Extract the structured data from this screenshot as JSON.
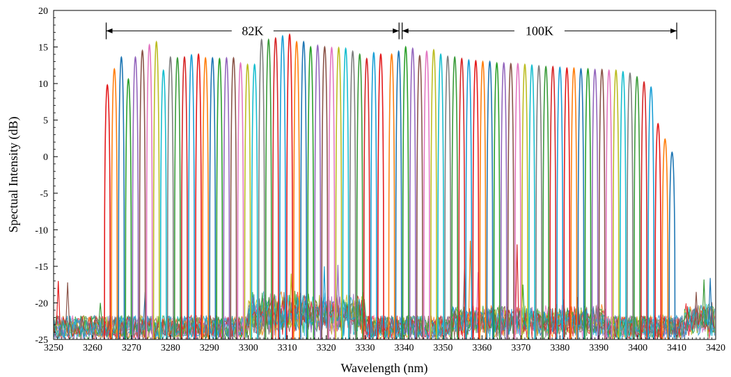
{
  "chart_data": {
    "type": "line",
    "title": "",
    "xlabel": "Wavelength (nm)",
    "ylabel": "Spectual Intensity (dB)",
    "xlim": [
      3250,
      3420
    ],
    "ylim": [
      -25,
      20
    ],
    "xticks": [
      3250,
      3260,
      3270,
      3280,
      3290,
      3300,
      3310,
      3320,
      3330,
      3340,
      3350,
      3360,
      3370,
      3380,
      3390,
      3400,
      3410,
      3420
    ],
    "yticks": [
      -25,
      -20,
      -15,
      -10,
      -5,
      0,
      5,
      10,
      15,
      20
    ],
    "noise_floor": -23,
    "grid": false,
    "legend": "none",
    "annotations": [
      {
        "label": "82K",
        "x_start": 3263.5,
        "x_end": 3338.7,
        "y": 17.2
      },
      {
        "label": "100K",
        "x_start": 3339.5,
        "x_end": 3410,
        "y": 17.2
      }
    ],
    "series_colors": [
      "#e41a1c",
      "#ff7f0e",
      "#1f77b4",
      "#2ca02c",
      "#9467bd",
      "#8c564b",
      "#e377c2",
      "#bcbd22",
      "#17becf",
      "#7f7f7f",
      "#3a9b3a",
      "#d62728",
      "#1a9fd6"
    ],
    "peaks": [
      {
        "x": 3263.8,
        "y": 9.8
      },
      {
        "x": 3265.6,
        "y": 12.0
      },
      {
        "x": 3267.4,
        "y": 13.6
      },
      {
        "x": 3269.2,
        "y": 10.6
      },
      {
        "x": 3271.0,
        "y": 13.6
      },
      {
        "x": 3272.8,
        "y": 14.5
      },
      {
        "x": 3274.6,
        "y": 15.3
      },
      {
        "x": 3276.4,
        "y": 15.7
      },
      {
        "x": 3278.2,
        "y": 11.8
      },
      {
        "x": 3280.0,
        "y": 13.6
      },
      {
        "x": 3281.8,
        "y": 13.5
      },
      {
        "x": 3283.6,
        "y": 13.6
      },
      {
        "x": 3285.4,
        "y": 13.9
      },
      {
        "x": 3287.2,
        "y": 14.0
      },
      {
        "x": 3289.0,
        "y": 13.5
      },
      {
        "x": 3290.8,
        "y": 13.5
      },
      {
        "x": 3292.6,
        "y": 13.4
      },
      {
        "x": 3294.4,
        "y": 13.5
      },
      {
        "x": 3296.2,
        "y": 13.5
      },
      {
        "x": 3298.0,
        "y": 12.8
      },
      {
        "x": 3299.8,
        "y": 12.6
      },
      {
        "x": 3301.6,
        "y": 12.6
      },
      {
        "x": 3303.4,
        "y": 16.0
      },
      {
        "x": 3305.2,
        "y": 16.0
      },
      {
        "x": 3307.0,
        "y": 16.2
      },
      {
        "x": 3308.8,
        "y": 16.5
      },
      {
        "x": 3310.6,
        "y": 16.7
      },
      {
        "x": 3312.4,
        "y": 15.7
      },
      {
        "x": 3314.2,
        "y": 15.7
      },
      {
        "x": 3316.0,
        "y": 15.0
      },
      {
        "x": 3317.8,
        "y": 15.2
      },
      {
        "x": 3319.6,
        "y": 15.0
      },
      {
        "x": 3321.4,
        "y": 14.9
      },
      {
        "x": 3323.2,
        "y": 14.9
      },
      {
        "x": 3325.0,
        "y": 14.8
      },
      {
        "x": 3326.8,
        "y": 14.4
      },
      {
        "x": 3328.6,
        "y": 14.0
      },
      {
        "x": 3330.4,
        "y": 13.4
      },
      {
        "x": 3332.2,
        "y": 14.2
      },
      {
        "x": 3334.0,
        "y": 14.0
      },
      {
        "x": 3336.8,
        "y": 14.0
      },
      {
        "x": 3338.6,
        "y": 14.4
      },
      {
        "x": 3340.4,
        "y": 15.0
      },
      {
        "x": 3342.2,
        "y": 14.8
      },
      {
        "x": 3344.0,
        "y": 13.8
      },
      {
        "x": 3345.8,
        "y": 14.4
      },
      {
        "x": 3347.6,
        "y": 14.6
      },
      {
        "x": 3349.4,
        "y": 14.0
      },
      {
        "x": 3351.2,
        "y": 13.7
      },
      {
        "x": 3353.0,
        "y": 13.6
      },
      {
        "x": 3354.8,
        "y": 13.4
      },
      {
        "x": 3356.6,
        "y": 13.2
      },
      {
        "x": 3358.4,
        "y": 13.1
      },
      {
        "x": 3360.2,
        "y": 13.0
      },
      {
        "x": 3362.0,
        "y": 13.0
      },
      {
        "x": 3363.8,
        "y": 12.8
      },
      {
        "x": 3365.6,
        "y": 12.8
      },
      {
        "x": 3367.4,
        "y": 12.7
      },
      {
        "x": 3369.2,
        "y": 12.7
      },
      {
        "x": 3371.0,
        "y": 12.6
      },
      {
        "x": 3372.8,
        "y": 12.5
      },
      {
        "x": 3374.6,
        "y": 12.4
      },
      {
        "x": 3376.4,
        "y": 12.3
      },
      {
        "x": 3378.2,
        "y": 12.3
      },
      {
        "x": 3380.0,
        "y": 12.2
      },
      {
        "x": 3381.8,
        "y": 12.1
      },
      {
        "x": 3383.6,
        "y": 12.1
      },
      {
        "x": 3385.4,
        "y": 12.0
      },
      {
        "x": 3387.2,
        "y": 12.0
      },
      {
        "x": 3389.0,
        "y": 11.9
      },
      {
        "x": 3390.8,
        "y": 11.9
      },
      {
        "x": 3392.6,
        "y": 11.8
      },
      {
        "x": 3394.4,
        "y": 11.8
      },
      {
        "x": 3396.2,
        "y": 11.6
      },
      {
        "x": 3398.0,
        "y": 11.4
      },
      {
        "x": 3399.8,
        "y": 10.9
      },
      {
        "x": 3401.6,
        "y": 10.2
      },
      {
        "x": 3403.4,
        "y": 9.5
      },
      {
        "x": 3405.2,
        "y": 4.5
      },
      {
        "x": 3407.0,
        "y": 2.4
      },
      {
        "x": 3408.8,
        "y": 0.6
      }
    ],
    "noise_bumps": [
      {
        "x": 3251.2,
        "y": -17.0
      },
      {
        "x": 3253.6,
        "y": -17.2
      },
      {
        "x": 3262.0,
        "y": -20.0
      },
      {
        "x": 3273.5,
        "y": -18.5
      },
      {
        "x": 3311.0,
        "y": -16.0
      },
      {
        "x": 3319.5,
        "y": -15.0
      },
      {
        "x": 3323.0,
        "y": -14.8
      },
      {
        "x": 3355.5,
        "y": -15.0
      },
      {
        "x": 3357.0,
        "y": -11.5
      },
      {
        "x": 3359.0,
        "y": -15.8
      },
      {
        "x": 3369.0,
        "y": -12.0
      },
      {
        "x": 3370.5,
        "y": -17.5
      },
      {
        "x": 3381.0,
        "y": -19.5
      },
      {
        "x": 3384.5,
        "y": -19.2
      },
      {
        "x": 3415.0,
        "y": -18.5
      },
      {
        "x": 3417.0,
        "y": -16.8
      },
      {
        "x": 3418.6,
        "y": -16.6
      }
    ]
  }
}
